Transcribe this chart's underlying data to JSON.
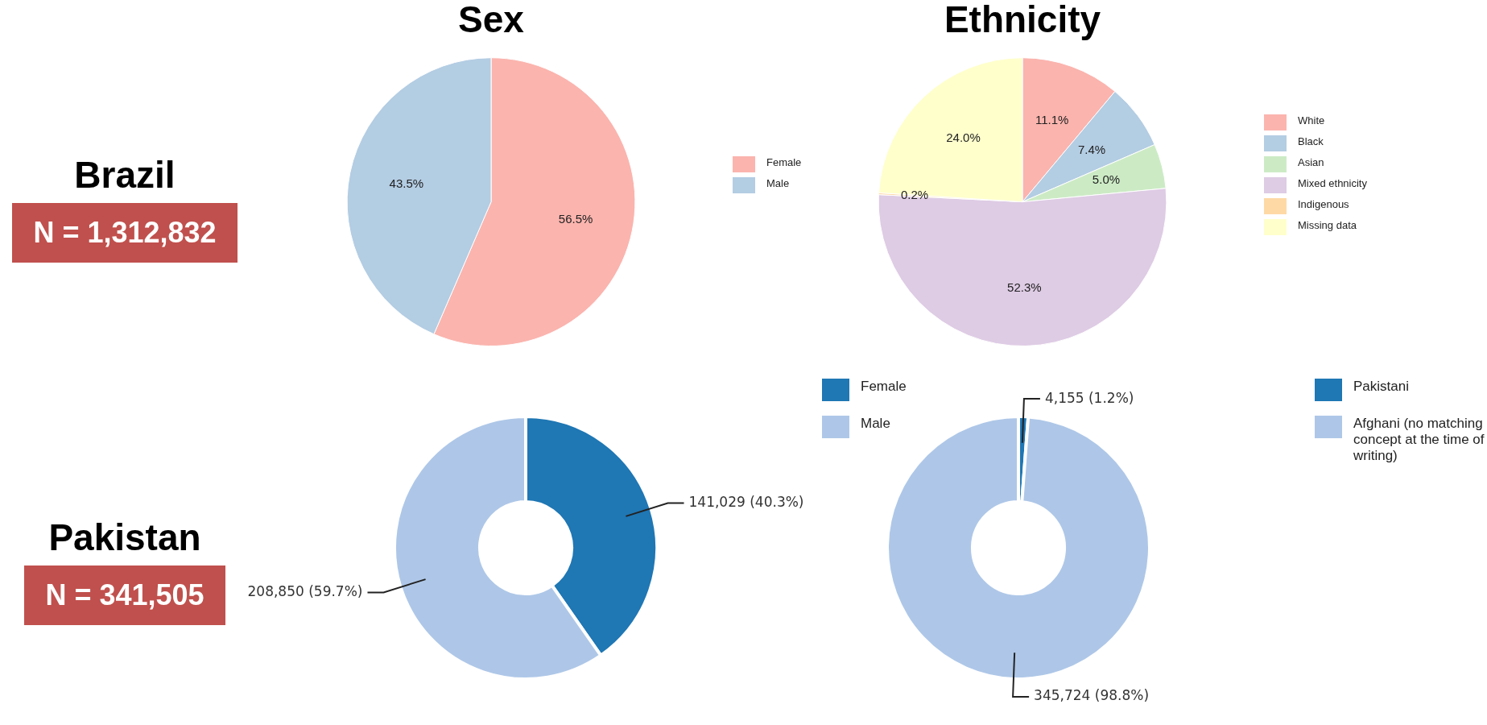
{
  "chart_data": [
    {
      "type": "other",
      "title": "Brazil",
      "annotations": [
        "N = 1,312,832"
      ],
      "color": "#c0504d"
    },
    {
      "type": "pie",
      "title": "Sex",
      "categories": [
        "Female",
        "Male"
      ],
      "values": [
        56.5,
        43.5
      ],
      "colors": [
        "#fbb4ae",
        "#b3cde3"
      ],
      "value_labels": [
        "56.5%",
        "43.5%"
      ],
      "legend": "right"
    },
    {
      "type": "pie",
      "title": "Ethnicity",
      "categories": [
        "White",
        "Black",
        "Asian",
        "Mixed ethnicity",
        "Indigenous",
        "Missing data"
      ],
      "values": [
        11.1,
        7.4,
        5.0,
        52.3,
        0.2,
        24.0
      ],
      "colors": [
        "#fbb4ae",
        "#b3cde3",
        "#ccebc5",
        "#decbe4",
        "#fed9a6",
        "#ffffcc"
      ],
      "value_labels": [
        "11.1%",
        "7.4%",
        "5.0%",
        "52.3%",
        "0.2%",
        "24.0%"
      ],
      "legend": "right"
    },
    {
      "type": "other",
      "title": "Pakistan",
      "annotations": [
        "N = 341,505"
      ],
      "color": "#c0504d"
    },
    {
      "type": "donut",
      "categories": [
        "Female",
        "Male"
      ],
      "values": [
        141029,
        208850
      ],
      "colors": [
        "#1f77b4",
        "#aec7e8"
      ],
      "value_labels": [
        "141,029 (40.3%)",
        "208,850 (59.7%)"
      ],
      "legend": "top right"
    },
    {
      "type": "donut",
      "categories": [
        "Pakistani",
        "Afghani (no matching concept at the time of writing)"
      ],
      "values": [
        4155,
        345724
      ],
      "colors": [
        "#1f77b4",
        "#aec7e8"
      ],
      "value_labels": [
        "4,155 (1.2%)",
        "345,724 (98.8%)"
      ],
      "legend": "top right"
    }
  ]
}
